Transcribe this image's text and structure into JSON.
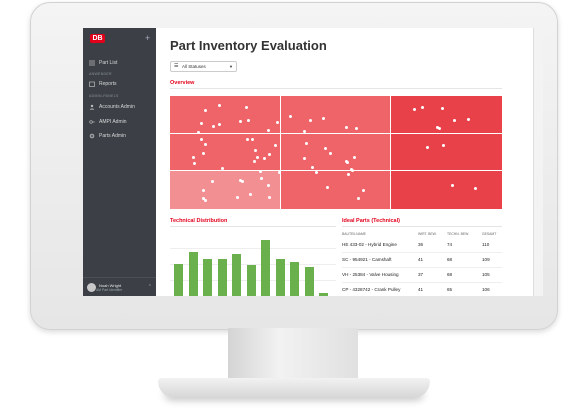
{
  "sidebar": {
    "logo": "DB",
    "add": "+",
    "items": [
      {
        "label": "Part List",
        "icon": "list-icon"
      },
      {
        "label": "Reports",
        "icon": "calendar-icon"
      },
      {
        "label": "Accounts Admin",
        "icon": "users-icon"
      },
      {
        "label": "AMPI Admin",
        "icon": "key-icon"
      },
      {
        "label": "Parts Admin",
        "icon": "gear-icon"
      }
    ],
    "sections": [
      "ANWENDER",
      "ADMIN-PANELS"
    ],
    "user": {
      "name": "Noah Wright",
      "role": "AM Part Identifier"
    }
  },
  "page": {
    "title": "Part Inventory Evaluation"
  },
  "filter": {
    "selected": "All Statuses"
  },
  "overview": {
    "title": "Overview",
    "colors": [
      "#e8414a",
      "#ee6468",
      "#f18f92",
      "#f4a7a9"
    ],
    "grid": [
      [
        1,
        1,
        0
      ],
      [
        1,
        1,
        0
      ],
      [
        2,
        1,
        0
      ]
    ]
  },
  "tech": {
    "title": "Technical Distribution",
    "bar_color": "#6ab04c",
    "values": [
      55,
      75,
      62,
      62,
      72,
      52,
      95,
      62,
      57,
      50,
      5
    ]
  },
  "ideal": {
    "title": "Ideal Parts (Technical)",
    "headers": [
      "BAUTEILNAME",
      "WIRT. BEW.",
      "TECHN. BEW.",
      "GESAMT"
    ],
    "rows": [
      [
        "HE 433-02 - Hybrid Engine",
        "36",
        "74",
        "110"
      ],
      [
        "SC - 954921 - Camshaft",
        "41",
        "68",
        "109"
      ],
      [
        "VH - 25384 - Valve Housing",
        "37",
        "68",
        "105"
      ],
      [
        "CP - 4328742 - Crank Pulley",
        "41",
        "65",
        "106"
      ]
    ]
  }
}
